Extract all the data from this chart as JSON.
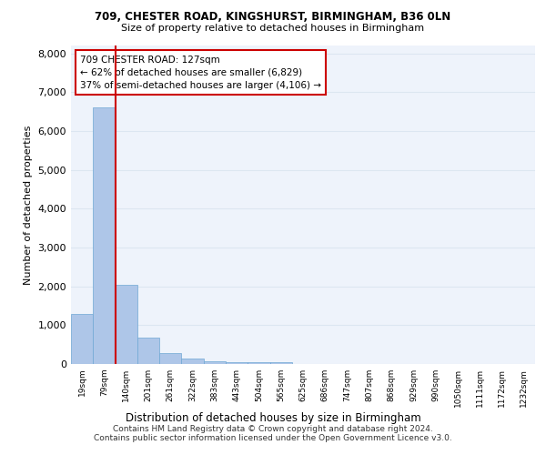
{
  "title": "709, CHESTER ROAD, KINGSHURST, BIRMINGHAM, B36 0LN",
  "subtitle": "Size of property relative to detached houses in Birmingham",
  "xlabel": "Distribution of detached houses by size in Birmingham",
  "ylabel": "Number of detached properties",
  "footer_line1": "Contains HM Land Registry data © Crown copyright and database right 2024.",
  "footer_line2": "Contains public sector information licensed under the Open Government Licence v3.0.",
  "bin_labels": [
    "19sqm",
    "79sqm",
    "140sqm",
    "201sqm",
    "261sqm",
    "322sqm",
    "383sqm",
    "443sqm",
    "504sqm",
    "565sqm",
    "625sqm",
    "686sqm",
    "747sqm",
    "807sqm",
    "868sqm",
    "929sqm",
    "990sqm",
    "1050sqm",
    "1111sqm",
    "1172sqm",
    "1232sqm"
  ],
  "bar_heights": [
    1300,
    6600,
    2050,
    680,
    280,
    140,
    80,
    55,
    55,
    55,
    0,
    0,
    0,
    0,
    0,
    0,
    0,
    0,
    0,
    0,
    0
  ],
  "bar_color": "#aec6e8",
  "bar_edge_color": "#6fa8d4",
  "grid_color": "#dce6f1",
  "background_color": "#eef3fb",
  "red_line_x": 1.5,
  "red_line_color": "#cc0000",
  "annotation_text": "709 CHESTER ROAD: 127sqm\n← 62% of detached houses are smaller (6,829)\n37% of semi-detached houses are larger (4,106) →",
  "annotation_box_color": "#ffffff",
  "annotation_border_color": "#cc0000",
  "ylim": [
    0,
    8200
  ],
  "yticks": [
    0,
    1000,
    2000,
    3000,
    4000,
    5000,
    6000,
    7000,
    8000
  ]
}
